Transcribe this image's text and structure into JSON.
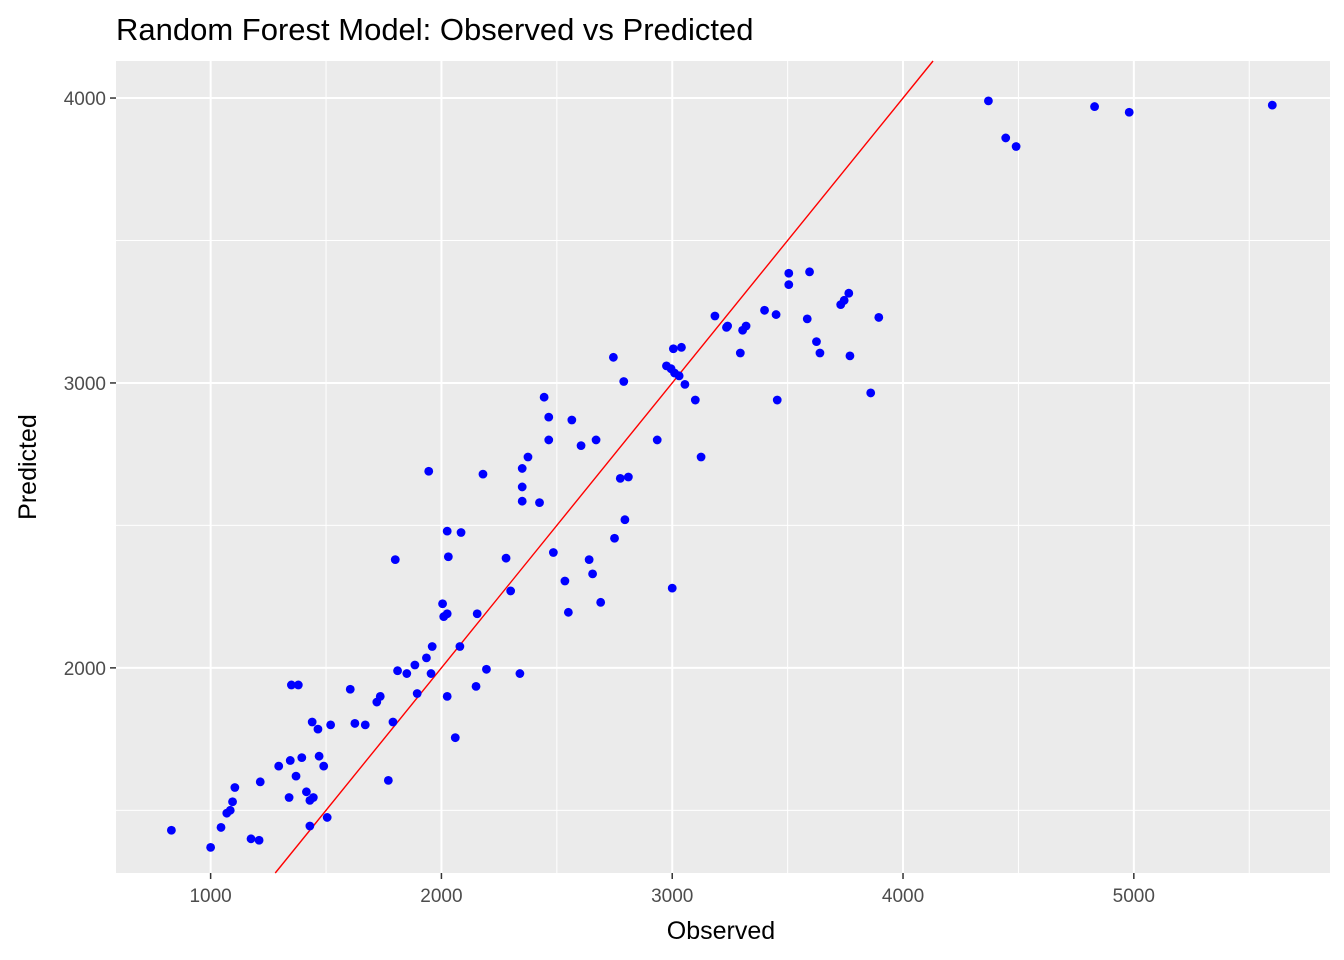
{
  "chart_data": {
    "type": "scatter",
    "title": "Random Forest Model: Observed vs Predicted",
    "xlabel": "Observed",
    "ylabel": "Predicted",
    "xlim": [
      590,
      5850
    ],
    "ylim": [
      1280,
      4130
    ],
    "x_ticks": [
      1000,
      2000,
      3000,
      4000,
      5000
    ],
    "x_tick_labels": [
      "1000",
      "2000",
      "3000",
      "4000",
      "5000"
    ],
    "y_ticks": [
      2000,
      3000,
      4000
    ],
    "y_tick_labels": [
      "2000",
      "3000",
      "4000"
    ],
    "grid": true,
    "background": "#ebebeb",
    "grid_color": "#ffffff",
    "point_color": "#0000ff",
    "line_color": "#ff0000",
    "reference_line": {
      "type": "identity",
      "slope": 1,
      "intercept": 0
    },
    "points": [
      {
        "x": 830,
        "y": 1430
      },
      {
        "x": 1000,
        "y": 1370
      },
      {
        "x": 1045,
        "y": 1440
      },
      {
        "x": 1070,
        "y": 1490
      },
      {
        "x": 1085,
        "y": 1500
      },
      {
        "x": 1095,
        "y": 1530
      },
      {
        "x": 1105,
        "y": 1580
      },
      {
        "x": 1175,
        "y": 1400
      },
      {
        "x": 1210,
        "y": 1395
      },
      {
        "x": 1215,
        "y": 1600
      },
      {
        "x": 1295,
        "y": 1655
      },
      {
        "x": 1340,
        "y": 1545
      },
      {
        "x": 1345,
        "y": 1675
      },
      {
        "x": 1350,
        "y": 1940
      },
      {
        "x": 1370,
        "y": 1620
      },
      {
        "x": 1380,
        "y": 1940
      },
      {
        "x": 1395,
        "y": 1685
      },
      {
        "x": 1415,
        "y": 1565
      },
      {
        "x": 1430,
        "y": 1535
      },
      {
        "x": 1430,
        "y": 1445
      },
      {
        "x": 1445,
        "y": 1545
      },
      {
        "x": 1440,
        "y": 1810
      },
      {
        "x": 1465,
        "y": 1785
      },
      {
        "x": 1470,
        "y": 1690
      },
      {
        "x": 1490,
        "y": 1655
      },
      {
        "x": 1505,
        "y": 1475
      },
      {
        "x": 1520,
        "y": 1800
      },
      {
        "x": 1605,
        "y": 1925
      },
      {
        "x": 1625,
        "y": 1805
      },
      {
        "x": 1670,
        "y": 1800
      },
      {
        "x": 1720,
        "y": 1880
      },
      {
        "x": 1735,
        "y": 1900
      },
      {
        "x": 1770,
        "y": 1605
      },
      {
        "x": 1790,
        "y": 1810
      },
      {
        "x": 1800,
        "y": 2380
      },
      {
        "x": 1810,
        "y": 1990
      },
      {
        "x": 1850,
        "y": 1980
      },
      {
        "x": 1885,
        "y": 2010
      },
      {
        "x": 1895,
        "y": 1910
      },
      {
        "x": 1935,
        "y": 2035
      },
      {
        "x": 1945,
        "y": 2690
      },
      {
        "x": 1955,
        "y": 1980
      },
      {
        "x": 1960,
        "y": 2075
      },
      {
        "x": 2005,
        "y": 2225
      },
      {
        "x": 2010,
        "y": 2180
      },
      {
        "x": 2025,
        "y": 2190
      },
      {
        "x": 2025,
        "y": 2480
      },
      {
        "x": 2030,
        "y": 2390
      },
      {
        "x": 2025,
        "y": 1900
      },
      {
        "x": 2060,
        "y": 1755
      },
      {
        "x": 2080,
        "y": 2075
      },
      {
        "x": 2085,
        "y": 2475
      },
      {
        "x": 2150,
        "y": 1935
      },
      {
        "x": 2155,
        "y": 2190
      },
      {
        "x": 2180,
        "y": 2680
      },
      {
        "x": 2195,
        "y": 1995
      },
      {
        "x": 2280,
        "y": 2385
      },
      {
        "x": 2300,
        "y": 2270
      },
      {
        "x": 2340,
        "y": 1980
      },
      {
        "x": 2350,
        "y": 2700
      },
      {
        "x": 2350,
        "y": 2635
      },
      {
        "x": 2350,
        "y": 2585
      },
      {
        "x": 2375,
        "y": 2740
      },
      {
        "x": 2425,
        "y": 2580
      },
      {
        "x": 2445,
        "y": 2950
      },
      {
        "x": 2465,
        "y": 2880
      },
      {
        "x": 2465,
        "y": 2800
      },
      {
        "x": 2485,
        "y": 2405
      },
      {
        "x": 2535,
        "y": 2305
      },
      {
        "x": 2550,
        "y": 2195
      },
      {
        "x": 2565,
        "y": 2870
      },
      {
        "x": 2605,
        "y": 2780
      },
      {
        "x": 2640,
        "y": 2380
      },
      {
        "x": 2655,
        "y": 2330
      },
      {
        "x": 2670,
        "y": 2800
      },
      {
        "x": 2690,
        "y": 2230
      },
      {
        "x": 2745,
        "y": 3090
      },
      {
        "x": 2750,
        "y": 2455
      },
      {
        "x": 2775,
        "y": 2665
      },
      {
        "x": 2790,
        "y": 3005
      },
      {
        "x": 2795,
        "y": 2520
      },
      {
        "x": 2810,
        "y": 2670
      },
      {
        "x": 2935,
        "y": 2800
      },
      {
        "x": 2975,
        "y": 3060
      },
      {
        "x": 2995,
        "y": 3050
      },
      {
        "x": 3000,
        "y": 2280
      },
      {
        "x": 3005,
        "y": 3120
      },
      {
        "x": 3010,
        "y": 3035
      },
      {
        "x": 3030,
        "y": 3025
      },
      {
        "x": 3040,
        "y": 3125
      },
      {
        "x": 3055,
        "y": 2995
      },
      {
        "x": 3100,
        "y": 2940
      },
      {
        "x": 3125,
        "y": 2740
      },
      {
        "x": 3185,
        "y": 3235
      },
      {
        "x": 3235,
        "y": 3195
      },
      {
        "x": 3240,
        "y": 3200
      },
      {
        "x": 3295,
        "y": 3105
      },
      {
        "x": 3305,
        "y": 3185
      },
      {
        "x": 3320,
        "y": 3200
      },
      {
        "x": 3400,
        "y": 3255
      },
      {
        "x": 3450,
        "y": 3240
      },
      {
        "x": 3455,
        "y": 2940
      },
      {
        "x": 3505,
        "y": 3385
      },
      {
        "x": 3505,
        "y": 3345
      },
      {
        "x": 3585,
        "y": 3225
      },
      {
        "x": 3595,
        "y": 3390
      },
      {
        "x": 3625,
        "y": 3145
      },
      {
        "x": 3640,
        "y": 3105
      },
      {
        "x": 3730,
        "y": 3275
      },
      {
        "x": 3745,
        "y": 3290
      },
      {
        "x": 3765,
        "y": 3315
      },
      {
        "x": 3770,
        "y": 3095
      },
      {
        "x": 3860,
        "y": 2965
      },
      {
        "x": 3895,
        "y": 3230
      },
      {
        "x": 4370,
        "y": 3990
      },
      {
        "x": 4445,
        "y": 3860
      },
      {
        "x": 4490,
        "y": 3830
      },
      {
        "x": 4830,
        "y": 3970
      },
      {
        "x": 4980,
        "y": 3950
      },
      {
        "x": 5600,
        "y": 3975
      }
    ]
  }
}
